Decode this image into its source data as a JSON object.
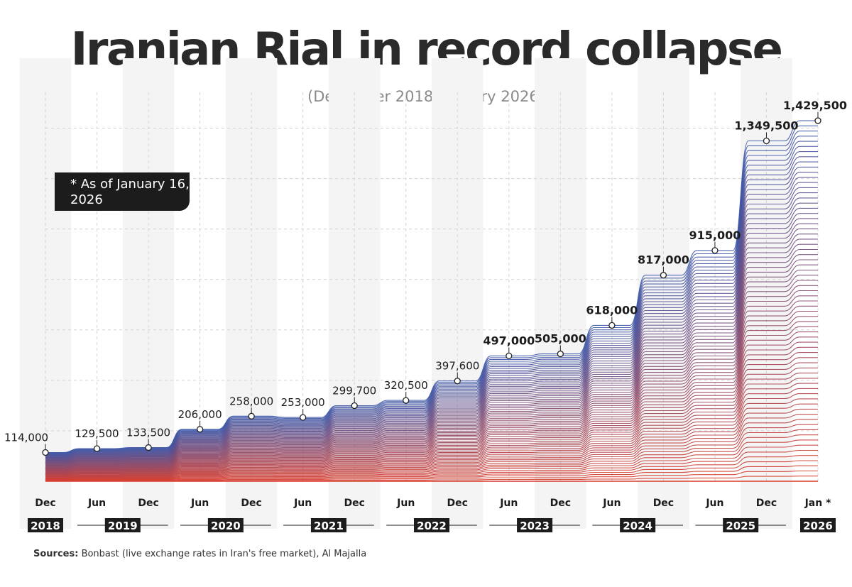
{
  "title": "Iranian Rial in record collapse",
  "subtitle": "(December 2018-January 2026)",
  "note": "* As of January 16, 2026",
  "source": {
    "label": "Sources:",
    "text": "Bonbast (live exchange rates in Iran's free market), Al Majalla"
  },
  "colors": {
    "top_line": "#3c56a8",
    "bottom_line": "#d83a2a",
    "band_light": "#f4f4f4",
    "text_dark": "#1c1c1c"
  },
  "chart_data": {
    "type": "area",
    "unit": "",
    "x": [
      "Dec",
      "Jun",
      "Dec",
      "Jun",
      "Dec",
      "Jun",
      "Dec",
      "Jun",
      "Dec",
      "Jun",
      "Dec",
      "Jun",
      "Dec",
      "Jun",
      "Dec",
      "Jan *"
    ],
    "values": [
      114000,
      129500,
      133500,
      206000,
      258000,
      253000,
      299700,
      320500,
      397600,
      497000,
      505000,
      618000,
      817000,
      915000,
      1349500,
      1429500
    ],
    "value_labels": [
      "114,000",
      "129,500",
      "133,500",
      "206,000",
      "258,000",
      "253,000",
      "299,700",
      "320,500",
      "397,600",
      "497,000",
      "505,000",
      "618,000",
      "817,000",
      "915,000",
      "1,349,500",
      "1,429,500"
    ],
    "years": [
      {
        "label": "2018",
        "from": 0,
        "to": 0
      },
      {
        "label": "2019",
        "from": 1,
        "to": 2
      },
      {
        "label": "2020",
        "from": 3,
        "to": 4
      },
      {
        "label": "2021",
        "from": 5,
        "to": 6
      },
      {
        "label": "2022",
        "from": 7,
        "to": 8
      },
      {
        "label": "2023",
        "from": 9,
        "to": 10
      },
      {
        "label": "2024",
        "from": 11,
        "to": 12
      },
      {
        "label": "2025",
        "from": 13,
        "to": 14
      },
      {
        "label": "2026",
        "from": 15,
        "to": 15
      }
    ],
    "ylim": [
      0,
      1500000
    ],
    "grid": true,
    "legend": "none"
  }
}
